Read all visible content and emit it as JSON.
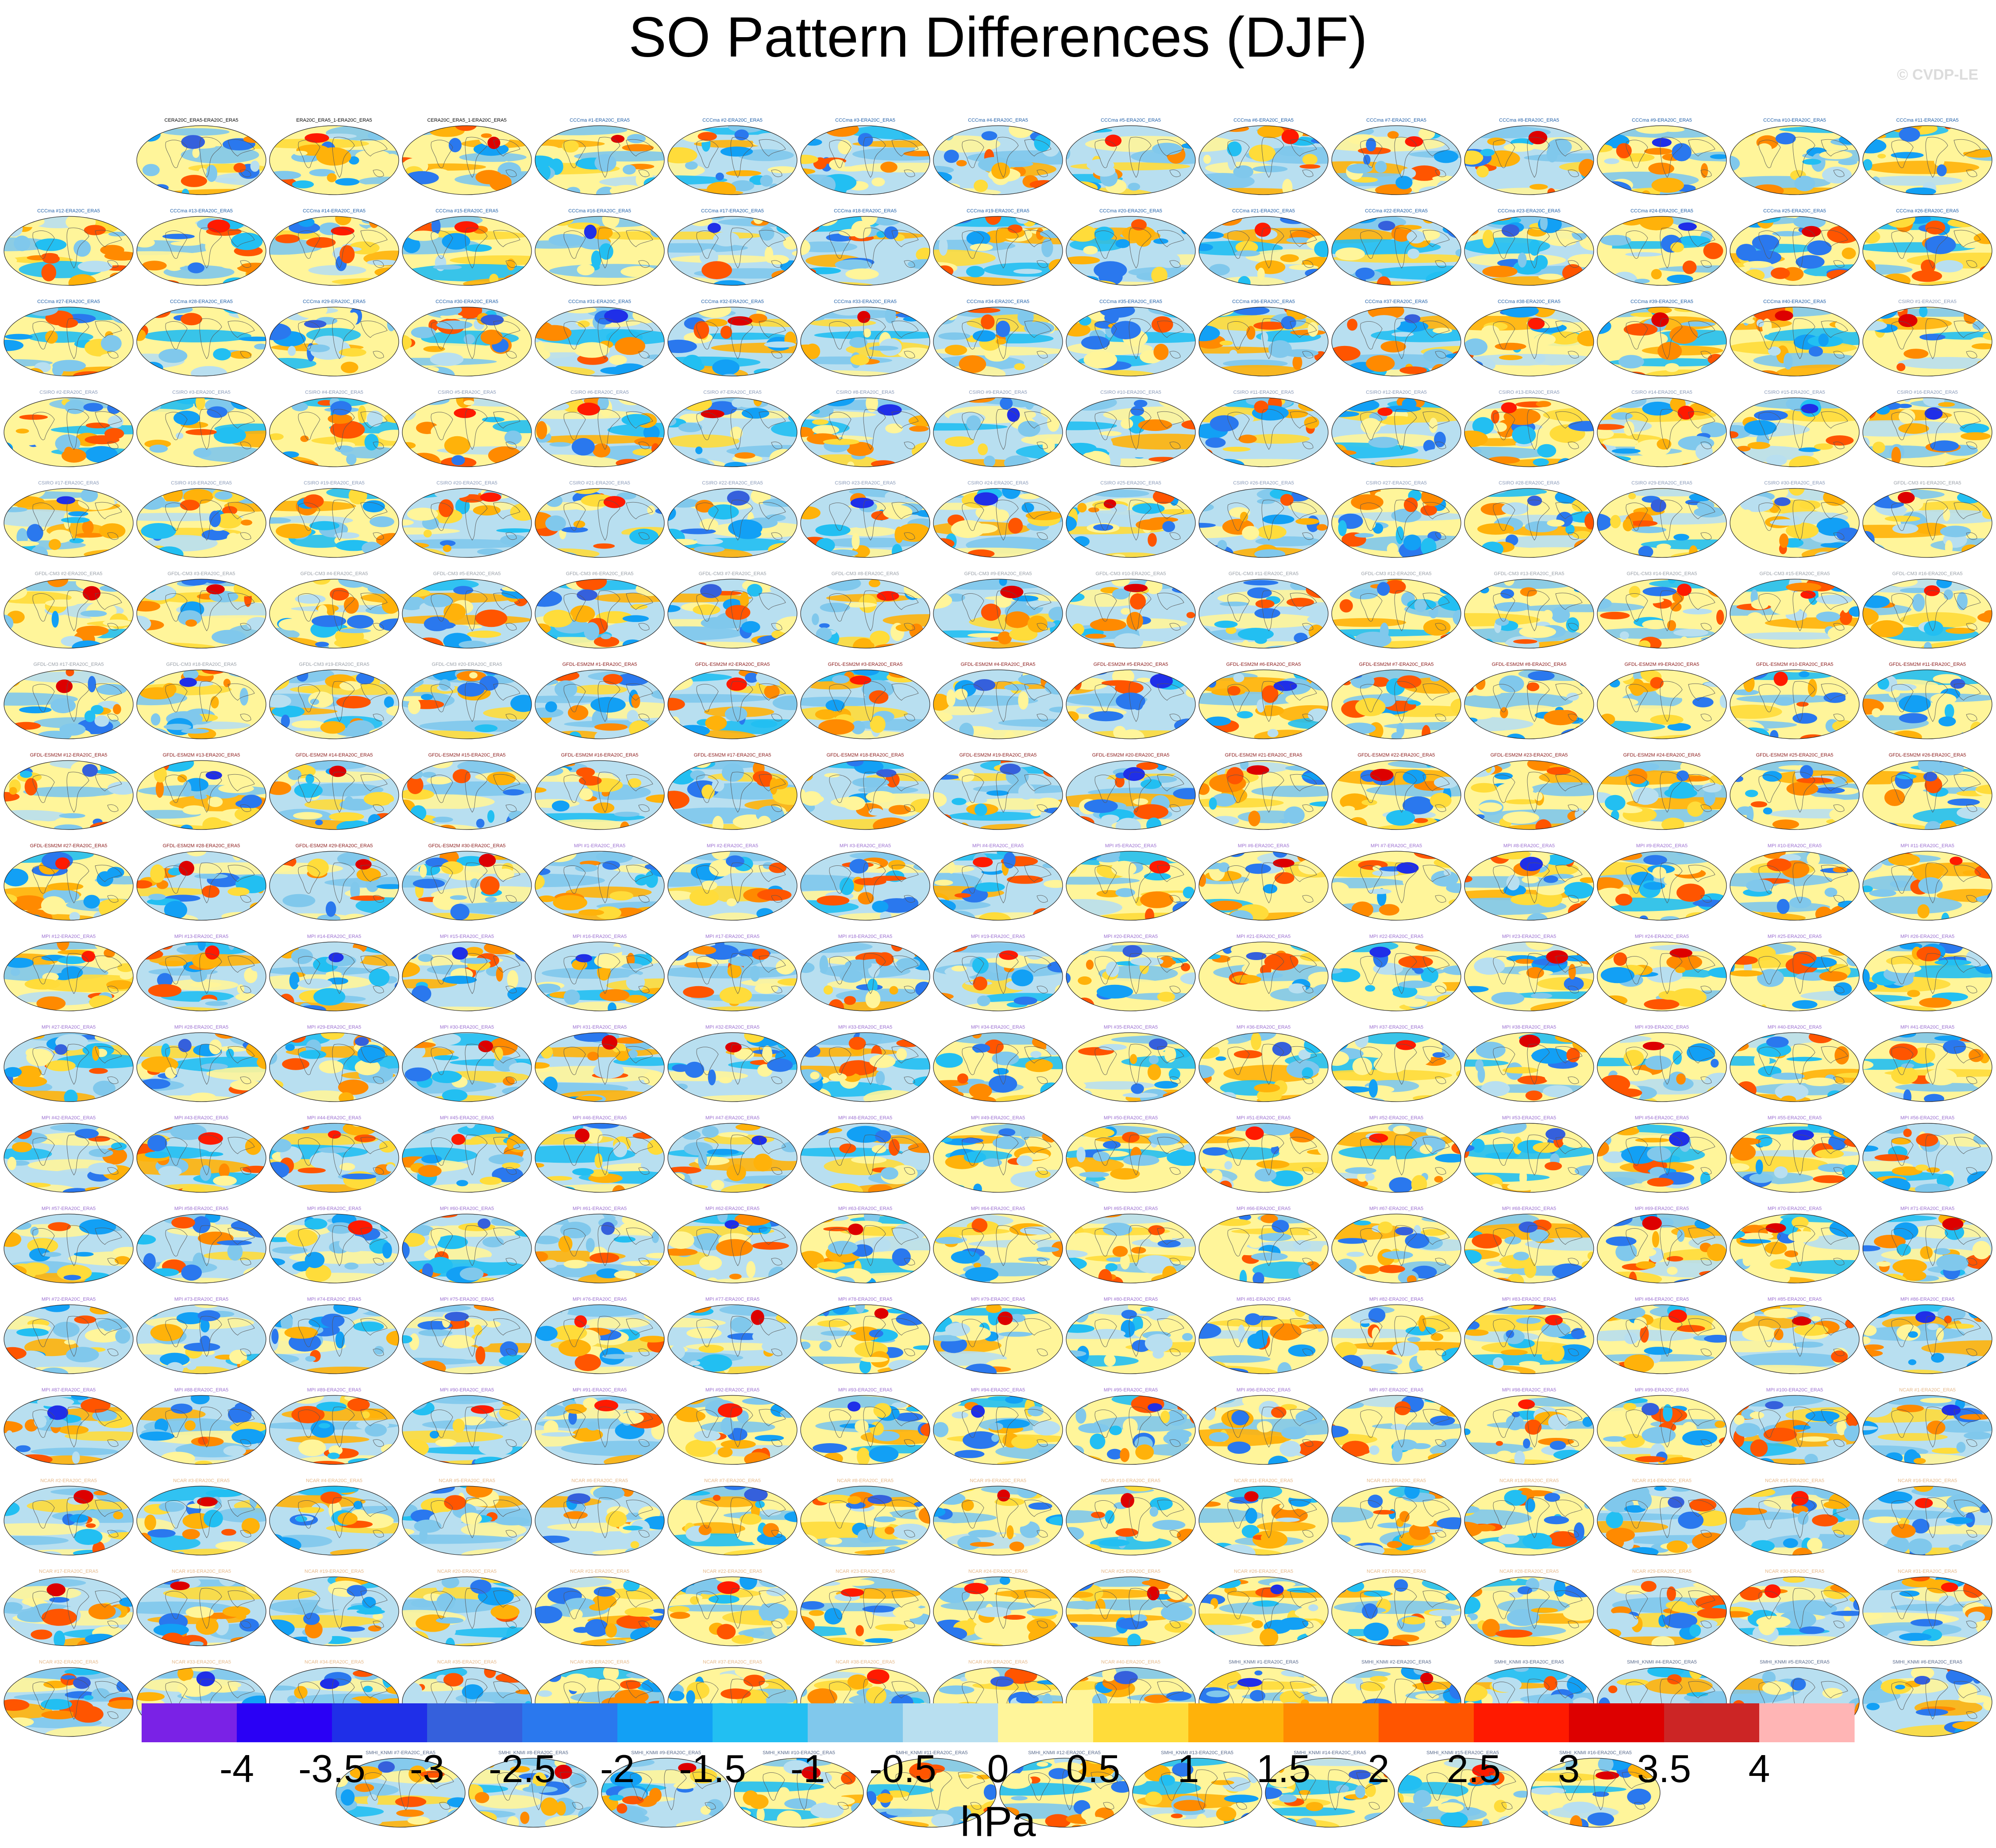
{
  "title": "SO Pattern Differences (DJF)",
  "watermark": "© CVDP-LE",
  "panel_groups": [
    {
      "label_color": "#000000",
      "titles": [
        "CERA20C_ERA5-ERA20C_ERA5",
        "ERA20C_ERA5_1-ERA20C_ERA5",
        "CERA20C_ERA5_1-ERA20C_ERA5"
      ]
    },
    {
      "label_color": "#1f5fa8",
      "titles": [
        "CCCma #1-ERA20C_ERA5",
        "CCCma #2-ERA20C_ERA5",
        "CCCma #3-ERA20C_ERA5",
        "CCCma #4-ERA20C_ERA5",
        "CCCma #5-ERA20C_ERA5",
        "CCCma #6-ERA20C_ERA5",
        "CCCma #7-ERA20C_ERA5",
        "CCCma #8-ERA20C_ERA5",
        "CCCma #9-ERA20C_ERA5",
        "CCCma #10-ERA20C_ERA5",
        "CCCma #11-ERA20C_ERA5",
        "CCCma #12-ERA20C_ERA5",
        "CCCma #13-ERA20C_ERA5",
        "CCCma #14-ERA20C_ERA5",
        "CCCma #15-ERA20C_ERA5",
        "CCCma #16-ERA20C_ERA5",
        "CCCma #17-ERA20C_ERA5",
        "CCCma #18-ERA20C_ERA5",
        "CCCma #19-ERA20C_ERA5",
        "CCCma #20-ERA20C_ERA5",
        "CCCma #21-ERA20C_ERA5",
        "CCCma #22-ERA20C_ERA5",
        "CCCma #23-ERA20C_ERA5",
        "CCCma #24-ERA20C_ERA5",
        "CCCma #25-ERA20C_ERA5",
        "CCCma #26-ERA20C_ERA5",
        "CCCma #27-ERA20C_ERA5",
        "CCCma #28-ERA20C_ERA5",
        "CCCma #29-ERA20C_ERA5",
        "CCCma #30-ERA20C_ERA5",
        "CCCma #31-ERA20C_ERA5",
        "CCCma #32-ERA20C_ERA5",
        "CCCma #33-ERA20C_ERA5",
        "CCCma #34-ERA20C_ERA5",
        "CCCma #35-ERA20C_ERA5",
        "CCCma #36-ERA20C_ERA5",
        "CCCma #37-ERA20C_ERA5",
        "CCCma #38-ERA20C_ERA5",
        "CCCma #39-ERA20C_ERA5",
        "CCCma #40-ERA20C_ERA5"
      ]
    },
    {
      "label_color": "#8a9ab8",
      "titles": [
        "CSIRO #1-ERA20C_ERA5",
        "CSIRO #2-ERA20C_ERA5",
        "CSIRO #3-ERA20C_ERA5",
        "CSIRO #4-ERA20C_ERA5",
        "CSIRO #5-ERA20C_ERA5",
        "CSIRO #6-ERA20C_ERA5",
        "CSIRO #7-ERA20C_ERA5",
        "CSIRO #8-ERA20C_ERA5",
        "CSIRO #9-ERA20C_ERA5",
        "CSIRO #10-ERA20C_ERA5",
        "CSIRO #11-ERA20C_ERA5",
        "CSIRO #12-ERA20C_ERA5",
        "CSIRO #13-ERA20C_ERA5",
        "CSIRO #14-ERA20C_ERA5",
        "CSIRO #15-ERA20C_ERA5",
        "CSIRO #16-ERA20C_ERA5",
        "CSIRO #17-ERA20C_ERA5",
        "CSIRO #18-ERA20C_ERA5",
        "CSIRO #19-ERA20C_ERA5",
        "CSIRO #20-ERA20C_ERA5",
        "CSIRO #21-ERA20C_ERA5",
        "CSIRO #22-ERA20C_ERA5",
        "CSIRO #23-ERA20C_ERA5",
        "CSIRO #24-ERA20C_ERA5",
        "CSIRO #25-ERA20C_ERA5",
        "CSIRO #26-ERA20C_ERA5",
        "CSIRO #27-ERA20C_ERA5",
        "CSIRO #28-ERA20C_ERA5",
        "CSIRO #29-ERA20C_ERA5",
        "CSIRO #30-ERA20C_ERA5"
      ]
    },
    {
      "label_color": "#9aa0a8",
      "titles": [
        "GFDL-CM3 #1-ERA20C_ERA5",
        "GFDL-CM3 #2-ERA20C_ERA5",
        "GFDL-CM3 #3-ERA20C_ERA5",
        "GFDL-CM3 #4-ERA20C_ERA5",
        "GFDL-CM3 #5-ERA20C_ERA5",
        "GFDL-CM3 #6-ERA20C_ERA5",
        "GFDL-CM3 #7-ERA20C_ERA5",
        "GFDL-CM3 #8-ERA20C_ERA5",
        "GFDL-CM3 #9-ERA20C_ERA5",
        "GFDL-CM3 #10-ERA20C_ERA5",
        "GFDL-CM3 #11-ERA20C_ERA5",
        "GFDL-CM3 #12-ERA20C_ERA5",
        "GFDL-CM3 #13-ERA20C_ERA5",
        "GFDL-CM3 #14-ERA20C_ERA5",
        "GFDL-CM3 #15-ERA20C_ERA5",
        "GFDL-CM3 #16-ERA20C_ERA5",
        "GFDL-CM3 #17-ERA20C_ERA5",
        "GFDL-CM3 #18-ERA20C_ERA5",
        "GFDL-CM3 #19-ERA20C_ERA5",
        "GFDL-CM3 #20-ERA20C_ERA5"
      ]
    },
    {
      "label_color": "#8b1a1a",
      "titles": [
        "GFDL-ESM2M #1-ERA20C_ERA5",
        "GFDL-ESM2M #2-ERA20C_ERA5",
        "GFDL-ESM2M #3-ERA20C_ERA5",
        "GFDL-ESM2M #4-ERA20C_ERA5",
        "GFDL-ESM2M #5-ERA20C_ERA5",
        "GFDL-ESM2M #6-ERA20C_ERA5",
        "GFDL-ESM2M #7-ERA20C_ERA5",
        "GFDL-ESM2M #8-ERA20C_ERA5",
        "GFDL-ESM2M #9-ERA20C_ERA5",
        "GFDL-ESM2M #10-ERA20C_ERA5",
        "GFDL-ESM2M #11-ERA20C_ERA5",
        "GFDL-ESM2M #12-ERA20C_ERA5",
        "GFDL-ESM2M #13-ERA20C_ERA5",
        "GFDL-ESM2M #14-ERA20C_ERA5",
        "GFDL-ESM2M #15-ERA20C_ERA5",
        "GFDL-ESM2M #16-ERA20C_ERA5",
        "GFDL-ESM2M #17-ERA20C_ERA5",
        "GFDL-ESM2M #18-ERA20C_ERA5",
        "GFDL-ESM2M #19-ERA20C_ERA5",
        "GFDL-ESM2M #20-ERA20C_ERA5",
        "GFDL-ESM2M #21-ERA20C_ERA5",
        "GFDL-ESM2M #22-ERA20C_ERA5",
        "GFDL-ESM2M #23-ERA20C_ERA5",
        "GFDL-ESM2M #24-ERA20C_ERA5",
        "GFDL-ESM2M #25-ERA20C_ERA5",
        "GFDL-ESM2M #26-ERA20C_ERA5",
        "GFDL-ESM2M #27-ERA20C_ERA5",
        "GFDL-ESM2M #28-ERA20C_ERA5",
        "GFDL-ESM2M #29-ERA20C_ERA5",
        "GFDL-ESM2M #30-ERA20C_ERA5"
      ]
    },
    {
      "label_color": "#9b6fd0",
      "titles": [
        "MPI #1-ERA20C_ERA5",
        "MPI #2-ERA20C_ERA5",
        "MPI #3-ERA20C_ERA5",
        "MPI #4-ERA20C_ERA5",
        "MPI #5-ERA20C_ERA5",
        "MPI #6-ERA20C_ERA5",
        "MPI #7-ERA20C_ERA5",
        "MPI #8-ERA20C_ERA5",
        "MPI #9-ERA20C_ERA5",
        "MPI #10-ERA20C_ERA5",
        "MPI #11-ERA20C_ERA5",
        "MPI #12-ERA20C_ERA5",
        "MPI #13-ERA20C_ERA5",
        "MPI #14-ERA20C_ERA5",
        "MPI #15-ERA20C_ERA5",
        "MPI #16-ERA20C_ERA5",
        "MPI #17-ERA20C_ERA5",
        "MPI #18-ERA20C_ERA5",
        "MPI #19-ERA20C_ERA5",
        "MPI #20-ERA20C_ERA5",
        "MPI #21-ERA20C_ERA5",
        "MPI #22-ERA20C_ERA5",
        "MPI #23-ERA20C_ERA5",
        "MPI #24-ERA20C_ERA5",
        "MPI #25-ERA20C_ERA5",
        "MPI #26-ERA20C_ERA5",
        "MPI #27-ERA20C_ERA5",
        "MPI #28-ERA20C_ERA5",
        "MPI #29-ERA20C_ERA5",
        "MPI #30-ERA20C_ERA5",
        "MPI #31-ERA20C_ERA5",
        "MPI #32-ERA20C_ERA5",
        "MPI #33-ERA20C_ERA5",
        "MPI #34-ERA20C_ERA5",
        "MPI #35-ERA20C_ERA5",
        "MPI #36-ERA20C_ERA5",
        "MPI #37-ERA20C_ERA5",
        "MPI #38-ERA20C_ERA5",
        "MPI #39-ERA20C_ERA5",
        "MPI #40-ERA20C_ERA5",
        "MPI #41-ERA20C_ERA5",
        "MPI #42-ERA20C_ERA5",
        "MPI #43-ERA20C_ERA5",
        "MPI #44-ERA20C_ERA5",
        "MPI #45-ERA20C_ERA5",
        "MPI #46-ERA20C_ERA5",
        "MPI #47-ERA20C_ERA5",
        "MPI #48-ERA20C_ERA5",
        "MPI #49-ERA20C_ERA5",
        "MPI #50-ERA20C_ERA5",
        "MPI #51-ERA20C_ERA5",
        "MPI #52-ERA20C_ERA5",
        "MPI #53-ERA20C_ERA5",
        "MPI #54-ERA20C_ERA5",
        "MPI #55-ERA20C_ERA5",
        "MPI #56-ERA20C_ERA5",
        "MPI #57-ERA20C_ERA5",
        "MPI #58-ERA20C_ERA5",
        "MPI #59-ERA20C_ERA5",
        "MPI #60-ERA20C_ERA5",
        "MPI #61-ERA20C_ERA5",
        "MPI #62-ERA20C_ERA5",
        "MPI #63-ERA20C_ERA5",
        "MPI #64-ERA20C_ERA5",
        "MPI #65-ERA20C_ERA5",
        "MPI #66-ERA20C_ERA5",
        "MPI #67-ERA20C_ERA5",
        "MPI #68-ERA20C_ERA5",
        "MPI #69-ERA20C_ERA5",
        "MPI #70-ERA20C_ERA5",
        "MPI #71-ERA20C_ERA5",
        "MPI #72-ERA20C_ERA5",
        "MPI #73-ERA20C_ERA5",
        "MPI #74-ERA20C_ERA5",
        "MPI #75-ERA20C_ERA5",
        "MPI #76-ERA20C_ERA5",
        "MPI #77-ERA20C_ERA5",
        "MPI #78-ERA20C_ERA5",
        "MPI #79-ERA20C_ERA5",
        "MPI #80-ERA20C_ERA5",
        "MPI #81-ERA20C_ERA5",
        "MPI #82-ERA20C_ERA5",
        "MPI #83-ERA20C_ERA5",
        "MPI #84-ERA20C_ERA5",
        "MPI #85-ERA20C_ERA5",
        "MPI #86-ERA20C_ERA5",
        "MPI #87-ERA20C_ERA5",
        "MPI #88-ERA20C_ERA5",
        "MPI #89-ERA20C_ERA5",
        "MPI #90-ERA20C_ERA5",
        "MPI #91-ERA20C_ERA5",
        "MPI #92-ERA20C_ERA5",
        "MPI #93-ERA20C_ERA5",
        "MPI #94-ERA20C_ERA5",
        "MPI #95-ERA20C_ERA5",
        "MPI #96-ERA20C_ERA5",
        "MPI #97-ERA20C_ERA5",
        "MPI #98-ERA20C_ERA5",
        "MPI #99-ERA20C_ERA5",
        "MPI #100-ERA20C_ERA5"
      ]
    },
    {
      "label_color": "#e6b98a",
      "titles": [
        "NCAR #1-ERA20C_ERA5",
        "NCAR #2-ERA20C_ERA5",
        "NCAR #3-ERA20C_ERA5",
        "NCAR #4-ERA20C_ERA5",
        "NCAR #5-ERA20C_ERA5",
        "NCAR #6-ERA20C_ERA5",
        "NCAR #7-ERA20C_ERA5",
        "NCAR #8-ERA20C_ERA5",
        "NCAR #9-ERA20C_ERA5",
        "NCAR #10-ERA20C_ERA5",
        "NCAR #11-ERA20C_ERA5",
        "NCAR #12-ERA20C_ERA5",
        "NCAR #13-ERA20C_ERA5",
        "NCAR #14-ERA20C_ERA5",
        "NCAR #15-ERA20C_ERA5",
        "NCAR #16-ERA20C_ERA5",
        "NCAR #17-ERA20C_ERA5",
        "NCAR #18-ERA20C_ERA5",
        "NCAR #19-ERA20C_ERA5",
        "NCAR #20-ERA20C_ERA5",
        "NCAR #21-ERA20C_ERA5",
        "NCAR #22-ERA20C_ERA5",
        "NCAR #23-ERA20C_ERA5",
        "NCAR #24-ERA20C_ERA5",
        "NCAR #25-ERA20C_ERA5",
        "NCAR #26-ERA20C_ERA5",
        "NCAR #27-ERA20C_ERA5",
        "NCAR #28-ERA20C_ERA5",
        "NCAR #29-ERA20C_ERA5",
        "NCAR #30-ERA20C_ERA5",
        "NCAR #31-ERA20C_ERA5",
        "NCAR #32-ERA20C_ERA5",
        "NCAR #33-ERA20C_ERA5",
        "NCAR #34-ERA20C_ERA5",
        "NCAR #35-ERA20C_ERA5",
        "NCAR #36-ERA20C_ERA5",
        "NCAR #37-ERA20C_ERA5",
        "NCAR #38-ERA20C_ERA5",
        "NCAR #39-ERA20C_ERA5",
        "NCAR #40-ERA20C_ERA5"
      ]
    },
    {
      "label_color": "#5a6b8c",
      "titles": [
        "SMHI_KNMI #1-ERA20C_ERA5",
        "SMHI_KNMI #2-ERA20C_ERA5",
        "SMHI_KNMI #3-ERA20C_ERA5",
        "SMHI_KNMI #4-ERA20C_ERA5",
        "SMHI_KNMI #5-ERA20C_ERA5",
        "SMHI_KNMI #6-ERA20C_ERA5",
        "SMHI_KNMI #7-ERA20C_ERA5",
        "SMHI_KNMI #8-ERA20C_ERA5",
        "SMHI_KNMI #9-ERA20C_ERA5",
        "SMHI_KNMI #10-ERA20C_ERA5",
        "SMHI_KNMI #11-ERA20C_ERA5",
        "SMHI_KNMI #12-ERA20C_ERA5",
        "SMHI_KNMI #13-ERA20C_ERA5",
        "SMHI_KNMI #14-ERA20C_ERA5",
        "SMHI_KNMI #15-ERA20C_ERA5",
        "SMHI_KNMI #16-ERA20C_ERA5"
      ]
    }
  ],
  "chart_data": {
    "type": "heatmap",
    "title": "SO Pattern Differences (DJF)",
    "colorbar": {
      "units": "hPa",
      "levels": [
        -4,
        -3.5,
        -3,
        -2.5,
        -2,
        -1.5,
        -1,
        -0.5,
        0,
        0.5,
        1,
        1.5,
        2,
        2.5,
        3,
        3.5,
        4
      ],
      "tick_labels": [
        "-4",
        "-3.5",
        "-3",
        "-2.5",
        "-2",
        "-1.5",
        "-1",
        "-0.5",
        "0",
        "0.5",
        "1",
        "1.5",
        "2",
        "2.5",
        "3",
        "3.5",
        "4"
      ],
      "colors": [
        "#7a22e6",
        "#2a00f5",
        "#1f2fe8",
        "#3560dc",
        "#2a78ee",
        "#12a0f5",
        "#22bff2",
        "#80c8ec",
        "#b8dff0",
        "#fff59a",
        "#ffdc3a",
        "#ffb20a",
        "#ff8a00",
        "#ff5500",
        "#ff1a00",
        "#dd0000",
        "#cc2525",
        "#ffb5b5"
      ]
    }
  }
}
